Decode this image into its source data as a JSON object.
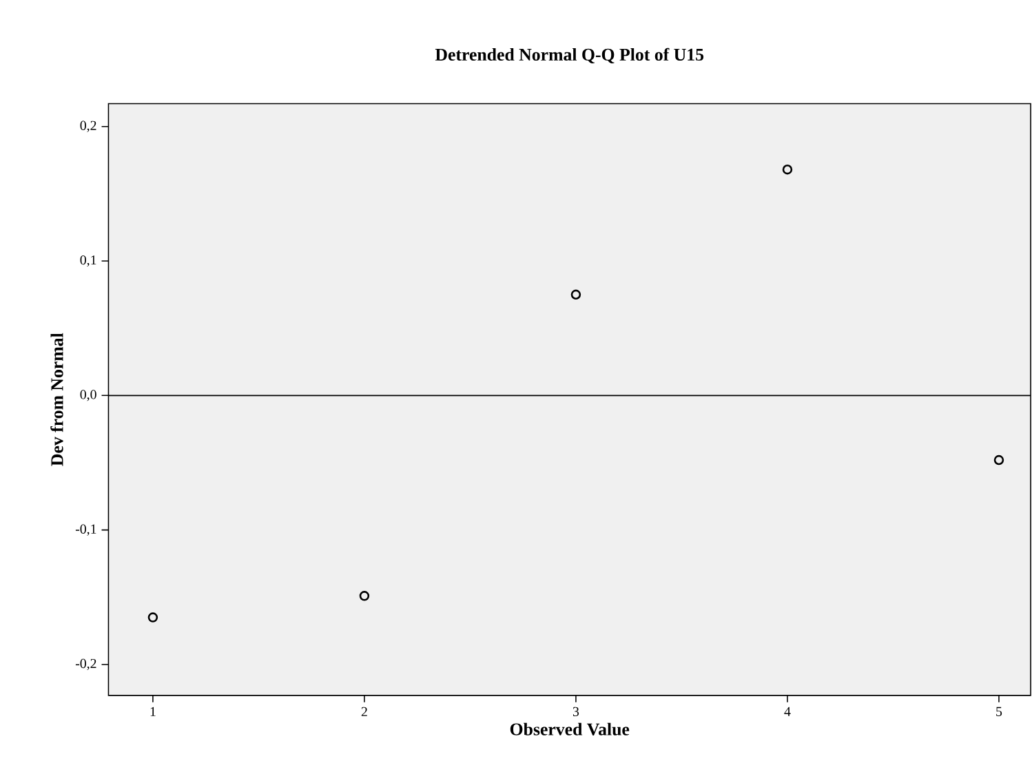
{
  "chart_data": {
    "type": "scatter",
    "title": "Detrended Normal Q-Q Plot of U15",
    "xlabel": "Observed Value",
    "ylabel": "Dev from Normal",
    "x": [
      1,
      2,
      3,
      4,
      5
    ],
    "series": [
      {
        "color": "#000000",
        "values": [
          -0.165,
          -0.149,
          0.075,
          0.168,
          -0.048
        ]
      }
    ],
    "marker": "circle",
    "xlim": [
      0.79,
      5.15
    ],
    "ylim": [
      -0.223,
      0.217
    ],
    "xticks": [
      1,
      2,
      3,
      4,
      5
    ],
    "yticks": [
      {
        "value": -0.2,
        "label": "-0,2"
      },
      {
        "value": -0.1,
        "label": "-0,1"
      },
      {
        "value": 0.0,
        "label": "0,0"
      },
      {
        "value": 0.1,
        "label": "0,1"
      },
      {
        "value": 0.2,
        "label": "0,2"
      }
    ],
    "ref_lines": [
      {
        "axis": "y",
        "value": 0,
        "color": "#000000"
      }
    ]
  }
}
